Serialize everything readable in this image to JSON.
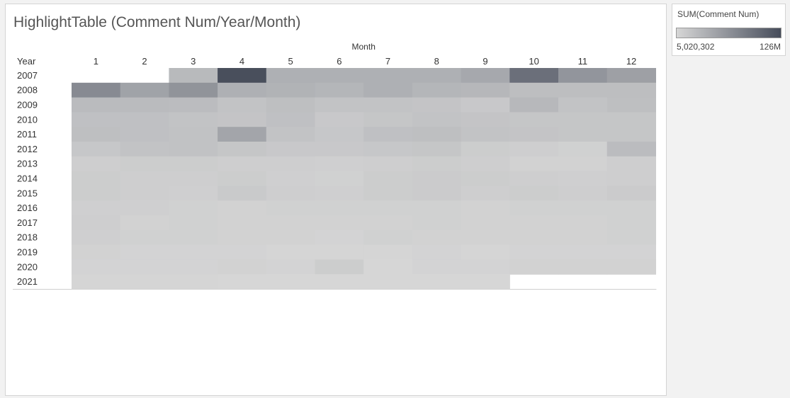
{
  "title": "HighlightTable (Comment Num/Year/Month)",
  "chart_data": {
    "type": "heatmap",
    "title": "HighlightTable (Comment Num/Year/Month)",
    "column_group_label": "Month",
    "row_header_label": "Year",
    "columns": [
      "1",
      "2",
      "3",
      "4",
      "5",
      "6",
      "7",
      "8",
      "9",
      "10",
      "11",
      "12"
    ],
    "rows": [
      "2007",
      "2008",
      "2009",
      "2010",
      "2011",
      "2012",
      "2013",
      "2014",
      "2015",
      "2016",
      "2017",
      "2018",
      "2019",
      "2020",
      "2021"
    ],
    "value_unit": "SUM(Comment Num)",
    "color_range": {
      "min_label": "5,020,302",
      "max_label": "126M",
      "min_value": 5020302,
      "max_value": 126000000,
      "min_color": "#d6d6d6",
      "max_color": "#464c5a"
    },
    "values": [
      [
        null,
        null,
        39,
        118,
        46,
        46,
        46,
        46,
        52,
        94,
        66,
        58
      ],
      [
        74,
        56,
        67,
        46,
        44,
        42,
        46,
        42,
        41,
        36,
        36,
        36
      ],
      [
        38,
        38,
        37,
        32,
        35,
        32,
        32,
        31,
        28,
        40,
        32,
        35
      ],
      [
        34,
        34,
        32,
        31,
        34,
        28,
        30,
        32,
        31,
        30,
        30,
        30
      ],
      [
        35,
        34,
        33,
        54,
        32,
        29,
        34,
        35,
        32,
        31,
        30,
        30
      ],
      [
        29,
        32,
        33,
        30,
        28,
        28,
        29,
        30,
        25,
        24,
        22,
        37
      ],
      [
        24,
        25,
        25,
        24,
        24,
        23,
        24,
        25,
        24,
        21,
        21,
        24
      ],
      [
        25,
        24,
        24,
        25,
        23,
        22,
        25,
        26,
        25,
        24,
        23,
        24
      ],
      [
        25,
        24,
        23,
        27,
        24,
        23,
        25,
        26,
        24,
        25,
        24,
        26
      ],
      [
        23,
        23,
        22,
        21,
        22,
        22,
        22,
        22,
        21,
        22,
        22,
        22
      ],
      [
        24,
        21,
        22,
        21,
        21,
        21,
        21,
        22,
        21,
        21,
        21,
        22
      ],
      [
        23,
        22,
        22,
        21,
        21,
        20,
        22,
        21,
        21,
        21,
        21,
        22
      ],
      [
        21,
        20,
        20,
        20,
        19,
        19,
        19,
        20,
        19,
        20,
        20,
        20
      ],
      [
        20,
        20,
        20,
        21,
        20,
        25,
        18,
        20,
        20,
        21,
        21,
        21
      ],
      [
        19,
        19,
        19,
        18,
        18,
        18,
        18,
        18,
        18,
        null,
        null,
        null
      ]
    ]
  }
}
